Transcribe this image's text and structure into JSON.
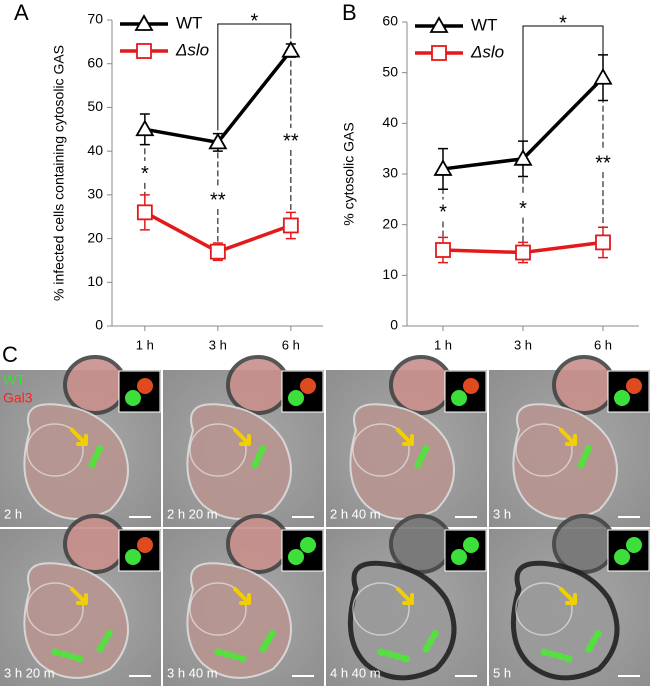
{
  "chart_data": [
    {
      "type": "line",
      "panel": "A",
      "y_label": "% infected cells containing cytosolic GAS",
      "categories": [
        "1 h",
        "3 h",
        "6 h"
      ],
      "ylim": [
        0,
        70
      ],
      "yticks": [
        0,
        10,
        20,
        30,
        40,
        50,
        60,
        70
      ],
      "series": [
        {
          "name": "WT",
          "color": "#000000",
          "marker": "triangle",
          "values": [
            45,
            42,
            63
          ],
          "errors": [
            3.5,
            2,
            1.5
          ]
        },
        {
          "name": "Δslo",
          "color": "#e3191c",
          "marker": "square",
          "values": [
            26,
            17,
            23
          ],
          "errors": [
            4,
            2,
            3
          ]
        }
      ],
      "significance": [
        "*",
        "**",
        "**"
      ],
      "bracket_label": "*"
    },
    {
      "type": "line",
      "panel": "B",
      "y_label": "% cytosolic GAS",
      "categories": [
        "1 h",
        "3 h",
        "6 h"
      ],
      "ylim": [
        0,
        60
      ],
      "yticks": [
        0,
        10,
        20,
        30,
        40,
        50,
        60
      ],
      "series": [
        {
          "name": "WT",
          "color": "#000000",
          "marker": "triangle",
          "values": [
            31,
            33,
            49
          ],
          "errors": [
            4,
            3.5,
            4.5
          ]
        },
        {
          "name": "Δslo",
          "color": "#e3191c",
          "marker": "square",
          "values": [
            15,
            14.5,
            16.5
          ],
          "errors": [
            2.5,
            2,
            3
          ]
        }
      ],
      "significance": [
        "*",
        "*",
        "**"
      ],
      "bracket_label": "*"
    }
  ],
  "microscopy": {
    "panel": "C",
    "channel_green": "WT",
    "channel_red": "Gal3",
    "frames": [
      "2 h",
      "2 h 20 m",
      "2 h 40 m",
      "3 h",
      "3 h 20 m",
      "3 h 40 m",
      "4 h 40 m",
      "5 h"
    ]
  }
}
